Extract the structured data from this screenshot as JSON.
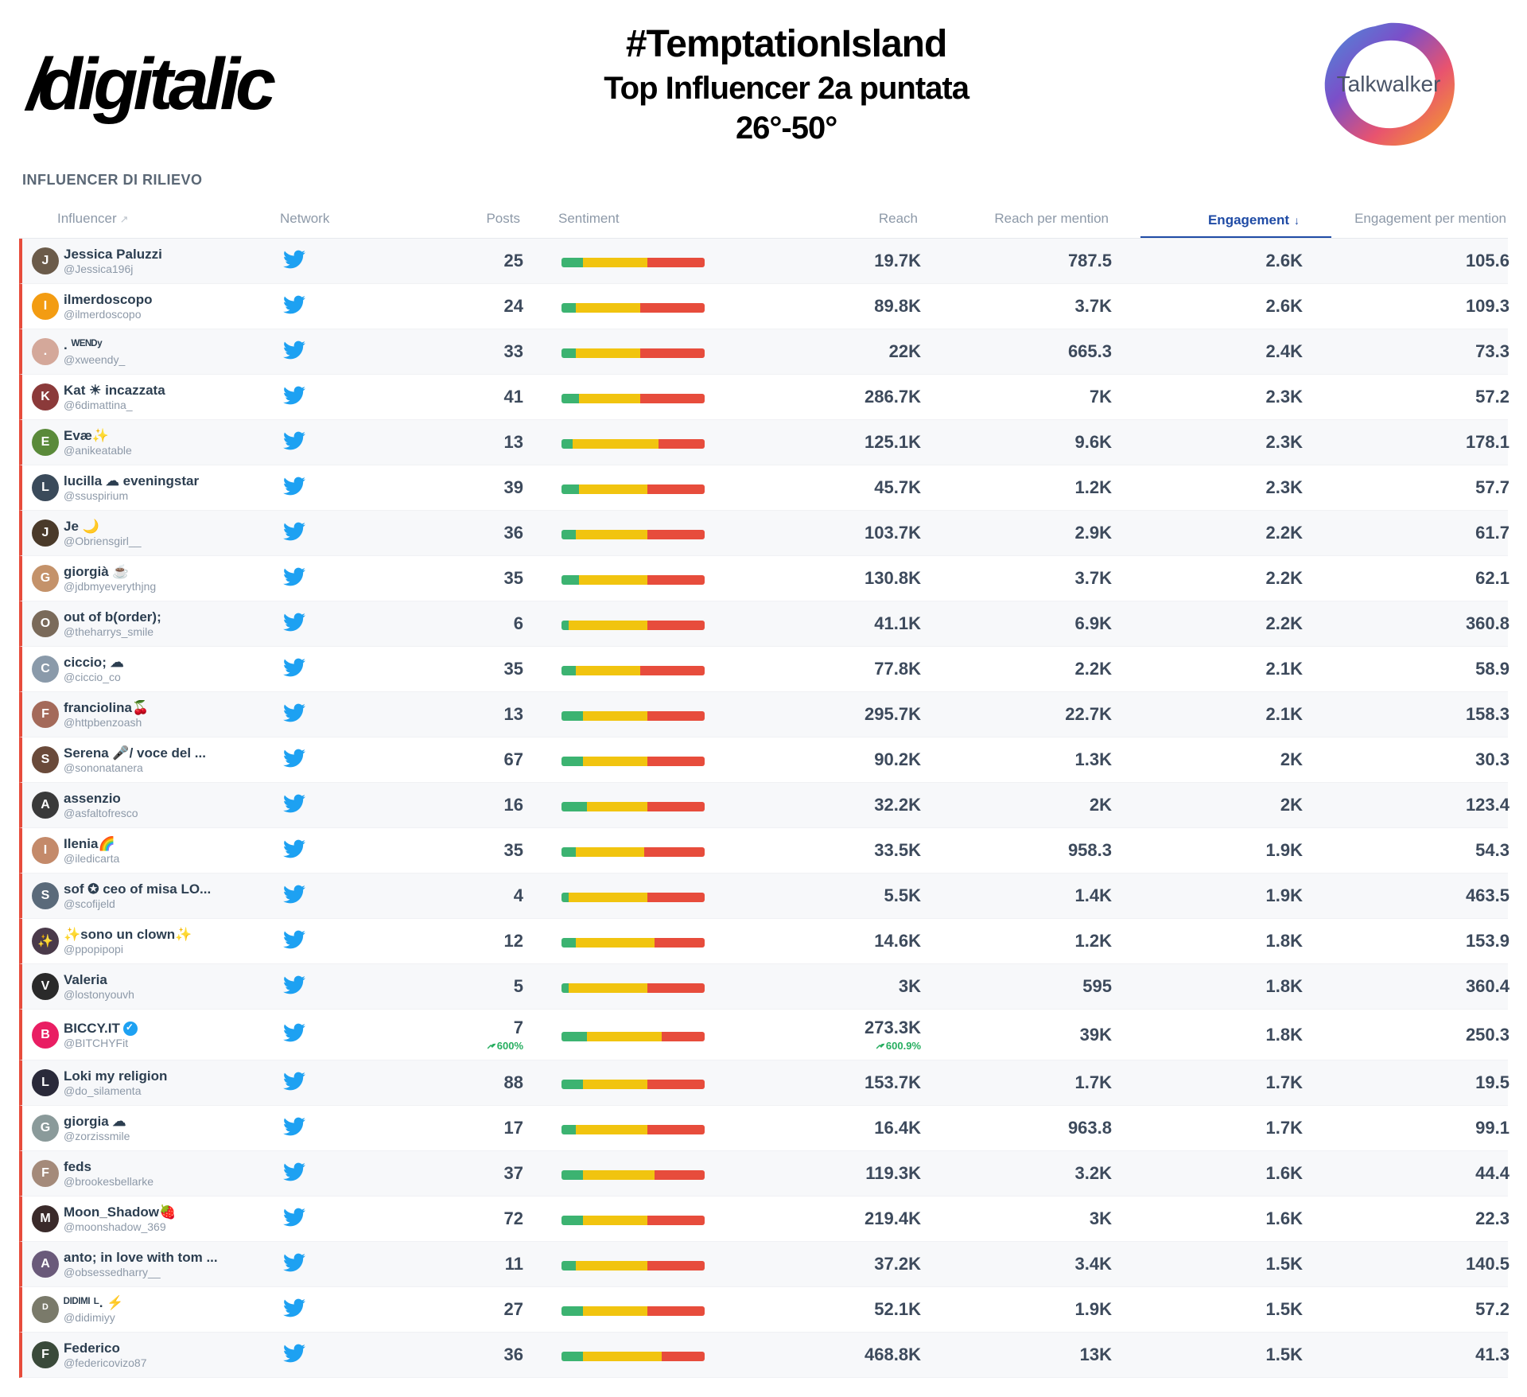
{
  "header": {
    "logo_left": "/digitalic",
    "title_line1": "#TemptationIsland",
    "title_line2": "Top Influencer 2a puntata",
    "title_line3": "26°-50°",
    "logo_right": "Talkwalker"
  },
  "section_title": "INFLUENCER DI RILIEVO",
  "columns": {
    "influencer": "Influencer",
    "network": "Network",
    "posts": "Posts",
    "sentiment": "Sentiment",
    "reach": "Reach",
    "reach_per_mention": "Reach per mention",
    "engagement": "Engagement",
    "engagement_per_mention": "Engagement per mention"
  },
  "sorted_column": "engagement",
  "rows": [
    {
      "name": "Jessica Paluzzi",
      "handle": "@Jessica196j",
      "posts": "25",
      "reach": "19.7K",
      "rpm": "787.5",
      "eng": "2.6K",
      "epm": "105.6",
      "sent": [
        15,
        45,
        40
      ],
      "avatar": "#6b5b4a"
    },
    {
      "name": "ilmerdoscopo",
      "handle": "@ilmerdoscopo",
      "posts": "24",
      "reach": "89.8K",
      "rpm": "3.7K",
      "eng": "2.6K",
      "epm": "109.3",
      "sent": [
        10,
        45,
        45
      ],
      "avatar": "#f39c12"
    },
    {
      "name": ". ᵂᴱᴺᴰʸ",
      "handle": "@xweendy_",
      "posts": "33",
      "reach": "22K",
      "rpm": "665.3",
      "eng": "2.4K",
      "epm": "73.3",
      "sent": [
        10,
        45,
        45
      ],
      "avatar": "#d4a89a"
    },
    {
      "name": "Kat ☀ incazzata",
      "handle": "@6dimattina_",
      "posts": "41",
      "reach": "286.7K",
      "rpm": "7K",
      "eng": "2.3K",
      "epm": "57.2",
      "sent": [
        12,
        43,
        45
      ],
      "avatar": "#8b3a3a"
    },
    {
      "name": "Evæ✨",
      "handle": "@anikeatable",
      "posts": "13",
      "reach": "125.1K",
      "rpm": "9.6K",
      "eng": "2.3K",
      "epm": "178.1",
      "sent": [
        8,
        60,
        32
      ],
      "avatar": "#5a8a3a"
    },
    {
      "name": "lucilla ☁ eveningstar",
      "handle": "@ssuspirium",
      "posts": "39",
      "reach": "45.7K",
      "rpm": "1.2K",
      "eng": "2.3K",
      "epm": "57.7",
      "sent": [
        12,
        48,
        40
      ],
      "avatar": "#3a4a5a"
    },
    {
      "name": "Je 🌙",
      "handle": "@Obriensgirl__",
      "posts": "36",
      "reach": "103.7K",
      "rpm": "2.9K",
      "eng": "2.2K",
      "epm": "61.7",
      "sent": [
        10,
        50,
        40
      ],
      "avatar": "#4a3a2a"
    },
    {
      "name": "giorgià ☕",
      "handle": "@jdbmyeverythjng",
      "posts": "35",
      "reach": "130.8K",
      "rpm": "3.7K",
      "eng": "2.2K",
      "epm": "62.1",
      "sent": [
        12,
        48,
        40
      ],
      "avatar": "#c4926a"
    },
    {
      "name": "out of b(order);",
      "handle": "@theharrys_smile",
      "posts": "6",
      "reach": "41.1K",
      "rpm": "6.9K",
      "eng": "2.2K",
      "epm": "360.8",
      "sent": [
        5,
        55,
        40
      ],
      "avatar": "#7a6a5a"
    },
    {
      "name": "ciccio; ☁",
      "handle": "@ciccio_co",
      "posts": "35",
      "reach": "77.8K",
      "rpm": "2.2K",
      "eng": "2.1K",
      "epm": "58.9",
      "sent": [
        10,
        45,
        45
      ],
      "avatar": "#8a9aaa"
    },
    {
      "name": "franciolina🍒",
      "handle": "@httpbenzoash",
      "posts": "13",
      "reach": "295.7K",
      "rpm": "22.7K",
      "eng": "2.1K",
      "epm": "158.3",
      "sent": [
        15,
        45,
        40
      ],
      "avatar": "#a46a5a"
    },
    {
      "name": "Serena 🎤/ voce del ...",
      "handle": "@sononatanera",
      "posts": "67",
      "reach": "90.2K",
      "rpm": "1.3K",
      "eng": "2K",
      "epm": "30.3",
      "sent": [
        15,
        45,
        40
      ],
      "avatar": "#6a4a3a"
    },
    {
      "name": "assenzio",
      "handle": "@asfaltofresco",
      "posts": "16",
      "reach": "32.2K",
      "rpm": "2K",
      "eng": "2K",
      "epm": "123.4",
      "sent": [
        18,
        42,
        40
      ],
      "avatar": "#3a3a3a"
    },
    {
      "name": "Ilenia🌈",
      "handle": "@iledicarta",
      "posts": "35",
      "reach": "33.5K",
      "rpm": "958.3",
      "eng": "1.9K",
      "epm": "54.3",
      "sent": [
        10,
        48,
        42
      ],
      "avatar": "#c48a6a"
    },
    {
      "name": "sof ✪ ceo of misa LO...",
      "handle": "@scofijeld",
      "posts": "4",
      "reach": "5.5K",
      "rpm": "1.4K",
      "eng": "1.9K",
      "epm": "463.5",
      "sent": [
        5,
        55,
        40
      ],
      "avatar": "#5a6a7a"
    },
    {
      "name": "✨sono un clown✨",
      "handle": "@ppopipopi",
      "posts": "12",
      "reach": "14.6K",
      "rpm": "1.2K",
      "eng": "1.8K",
      "epm": "153.9",
      "sent": [
        10,
        55,
        35
      ],
      "avatar": "#4a3a4a"
    },
    {
      "name": "Valeria",
      "handle": "@lostonyouvh",
      "posts": "5",
      "reach": "3K",
      "rpm": "595",
      "eng": "1.8K",
      "epm": "360.4",
      "sent": [
        5,
        55,
        40
      ],
      "avatar": "#2a2a2a"
    },
    {
      "name": "BICCY.IT",
      "handle": "@BITCHYFit",
      "posts": "7",
      "posts_trend": "600%",
      "reach": "273.3K",
      "reach_trend": "600.9%",
      "rpm": "39K",
      "eng": "1.8K",
      "epm": "250.3",
      "sent": [
        18,
        52,
        30
      ],
      "avatar": "#e91e63",
      "verified": true
    },
    {
      "name": "Loki my religion",
      "handle": "@do_silamenta",
      "posts": "88",
      "reach": "153.7K",
      "rpm": "1.7K",
      "eng": "1.7K",
      "epm": "19.5",
      "sent": [
        15,
        45,
        40
      ],
      "avatar": "#2a2a3a"
    },
    {
      "name": "giorgia ☁",
      "handle": "@zorzissmile",
      "posts": "17",
      "reach": "16.4K",
      "rpm": "963.8",
      "eng": "1.7K",
      "epm": "99.1",
      "sent": [
        10,
        50,
        40
      ],
      "avatar": "#8a9a9a"
    },
    {
      "name": "feds",
      "handle": "@brookesbellarke",
      "posts": "37",
      "reach": "119.3K",
      "rpm": "3.2K",
      "eng": "1.6K",
      "epm": "44.4",
      "sent": [
        15,
        50,
        35
      ],
      "avatar": "#a48a7a"
    },
    {
      "name": "Moon_Shadow🍓",
      "handle": "@moonshadow_369",
      "posts": "72",
      "reach": "219.4K",
      "rpm": "3K",
      "eng": "1.6K",
      "epm": "22.3",
      "sent": [
        15,
        45,
        40
      ],
      "avatar": "#3a2a2a"
    },
    {
      "name": "anto; in love with tom ...",
      "handle": "@obsessedharry__",
      "posts": "11",
      "reach": "37.2K",
      "rpm": "3.4K",
      "eng": "1.5K",
      "epm": "140.5",
      "sent": [
        10,
        50,
        40
      ],
      "avatar": "#6a5a7a"
    },
    {
      "name": "ᴰᴵᴰᴵᴹᴵ ᴸ. ⚡",
      "handle": "@didimiyy",
      "posts": "27",
      "reach": "52.1K",
      "rpm": "1.9K",
      "eng": "1.5K",
      "epm": "57.2",
      "sent": [
        15,
        45,
        40
      ],
      "avatar": "#7a7a6a"
    },
    {
      "name": "Federico",
      "handle": "@federicovizo87",
      "posts": "36",
      "reach": "468.8K",
      "rpm": "13K",
      "eng": "1.5K",
      "epm": "41.3",
      "sent": [
        15,
        55,
        30
      ],
      "avatar": "#3a4a3a"
    }
  ]
}
